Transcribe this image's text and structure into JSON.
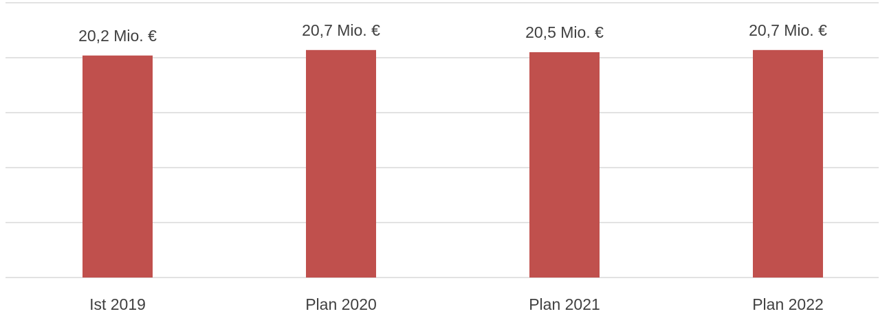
{
  "chart_data": {
    "type": "bar",
    "categories": [
      "Ist 2019",
      "Plan 2020",
      "Plan 2021",
      "Plan 2022"
    ],
    "values": [
      20.2,
      20.7,
      20.5,
      20.7
    ],
    "value_labels": [
      "20,2 Mio. €",
      "20,7 Mio. €",
      "20,5 Mio. €",
      "20,7 Mio. €"
    ],
    "color": "#c0504d",
    "ylim": [
      0,
      25
    ],
    "yticks": [
      0,
      5,
      10,
      15,
      20,
      25
    ],
    "grid": true
  }
}
